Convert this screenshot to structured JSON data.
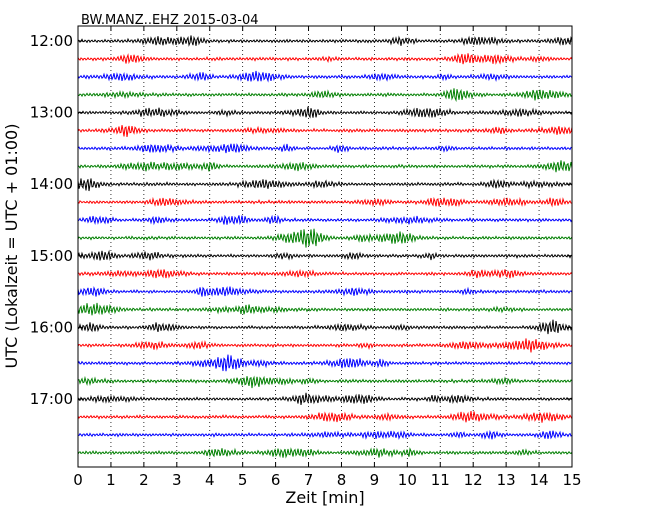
{
  "chart_data": {
    "type": "line",
    "title": "BW.MANZ..EHZ 2015-03-04",
    "xlabel": "Zeit  [min]",
    "ylabel": "UTC (Lokalzeit = UTC + 01:00)",
    "x_range": [
      0,
      15
    ],
    "x_ticks": [
      "0",
      "1",
      "2",
      "3",
      "4",
      "5",
      "6",
      "7",
      "8",
      "9",
      "10",
      "11",
      "12",
      "13",
      "14",
      "15"
    ],
    "y_tick_labels": [
      "12:00",
      "13:00",
      "14:00",
      "15:00",
      "16:00",
      "17:00"
    ],
    "grid": "vertical dotted lines at each minute",
    "trace_colors": [
      "#000000",
      "#ff0000",
      "#0000ff",
      "#007f00"
    ],
    "traces": [
      {
        "start": "12:00"
      },
      {
        "start": "12:15"
      },
      {
        "start": "12:30"
      },
      {
        "start": "12:45"
      },
      {
        "start": "13:00"
      },
      {
        "start": "13:15"
      },
      {
        "start": "13:30"
      },
      {
        "start": "13:45"
      },
      {
        "start": "14:00"
      },
      {
        "start": "14:15"
      },
      {
        "start": "14:30"
      },
      {
        "start": "14:45"
      },
      {
        "start": "15:00"
      },
      {
        "start": "15:15"
      },
      {
        "start": "15:30"
      },
      {
        "start": "15:45"
      },
      {
        "start": "16:00"
      },
      {
        "start": "16:15"
      },
      {
        "start": "16:30"
      },
      {
        "start": "16:45"
      },
      {
        "start": "17:00"
      },
      {
        "start": "17:15"
      },
      {
        "start": "17:30"
      },
      {
        "start": "17:45"
      }
    ]
  }
}
